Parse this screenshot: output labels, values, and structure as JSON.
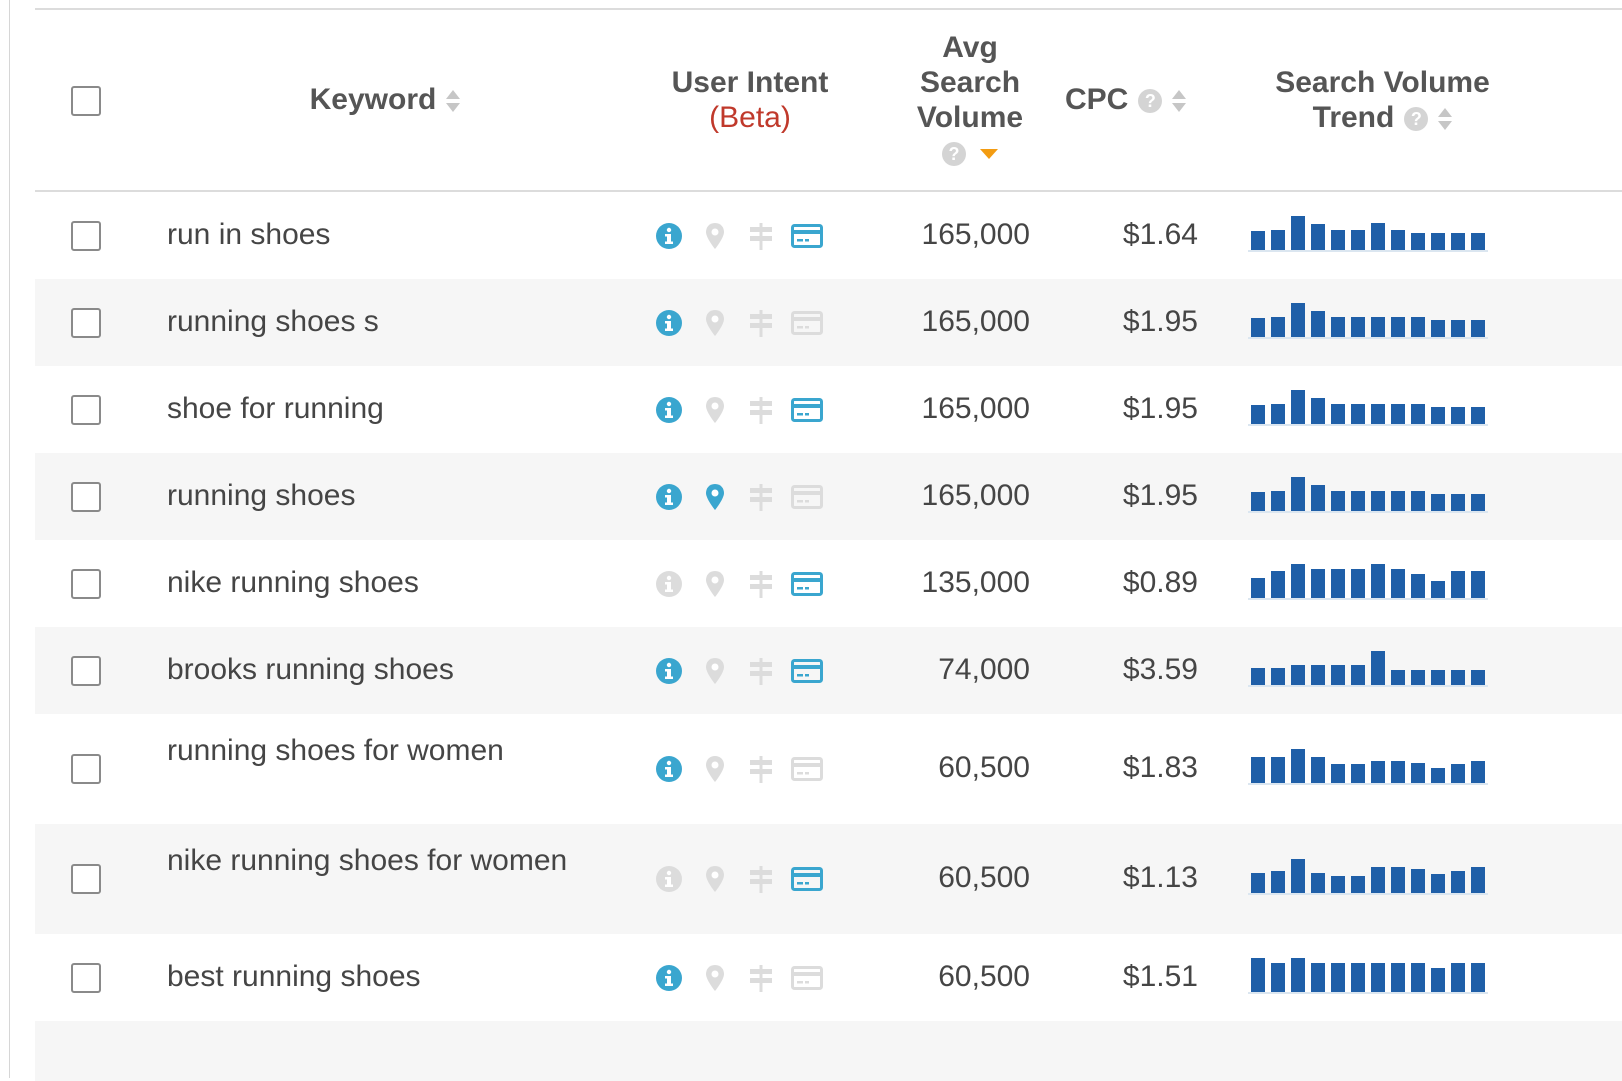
{
  "header": {
    "keyword": "Keyword",
    "user_intent": "User Intent",
    "user_intent_beta": "(Beta)",
    "avg_volume_line1": "Avg",
    "avg_volume_line2": "Search",
    "avg_volume_line3": "Volume",
    "cpc": "CPC",
    "trend_line1": "Search Volume",
    "trend_line2": "Trend",
    "help_glyph": "?"
  },
  "colors": {
    "bar": "#1f5fa8",
    "intent_active": "#3aa6cf",
    "intent_inactive": "#dcdcdc",
    "beta": "#c0392b",
    "sort_active": "#f39c12"
  },
  "rows": [
    {
      "keyword": "run in shoes",
      "intent": [
        1,
        0,
        0,
        1
      ],
      "volume": "165,000",
      "cpc": "$1.64",
      "trend": [
        0.55,
        0.6,
        1,
        0.75,
        0.6,
        0.6,
        0.8,
        0.6,
        0.5,
        0.5,
        0.5,
        0.5
      ]
    },
    {
      "keyword": "running shoes s",
      "intent": [
        1,
        0,
        0,
        0
      ],
      "volume": "165,000",
      "cpc": "$1.95",
      "trend": [
        0.55,
        0.6,
        1,
        0.75,
        0.6,
        0.6,
        0.6,
        0.6,
        0.6,
        0.5,
        0.5,
        0.5
      ]
    },
    {
      "keyword": "shoe for running",
      "intent": [
        1,
        0,
        0,
        1
      ],
      "volume": "165,000",
      "cpc": "$1.95",
      "trend": [
        0.55,
        0.6,
        1,
        0.75,
        0.6,
        0.6,
        0.6,
        0.6,
        0.6,
        0.5,
        0.5,
        0.5
      ]
    },
    {
      "keyword": "running shoes",
      "intent": [
        1,
        1,
        0,
        0
      ],
      "volume": "165,000",
      "cpc": "$1.95",
      "trend": [
        0.55,
        0.6,
        1,
        0.75,
        0.6,
        0.6,
        0.6,
        0.6,
        0.6,
        0.5,
        0.5,
        0.5
      ]
    },
    {
      "keyword": "nike running shoes",
      "intent": [
        0,
        0,
        0,
        1
      ],
      "volume": "135,000",
      "cpc": "$0.89",
      "trend": [
        0.6,
        0.8,
        1,
        0.85,
        0.85,
        0.85,
        1,
        0.85,
        0.7,
        0.5,
        0.8,
        0.8
      ]
    },
    {
      "keyword": "brooks running shoes",
      "intent": [
        1,
        0,
        0,
        1
      ],
      "volume": "74,000",
      "cpc": "$3.59",
      "trend": [
        0.5,
        0.5,
        0.6,
        0.6,
        0.6,
        0.6,
        1,
        0.45,
        0.45,
        0.45,
        0.45,
        0.45
      ]
    },
    {
      "keyword": "running shoes for women",
      "intent": [
        1,
        0,
        0,
        0
      ],
      "volume": "60,500",
      "cpc": "$1.83",
      "trend": [
        0.75,
        0.75,
        1,
        0.75,
        0.55,
        0.55,
        0.65,
        0.65,
        0.6,
        0.45,
        0.55,
        0.65
      ]
    },
    {
      "keyword": "nike running shoes for women",
      "intent": [
        0,
        0,
        0,
        1
      ],
      "volume": "60,500",
      "cpc": "$1.13",
      "trend": [
        0.6,
        0.65,
        1,
        0.6,
        0.5,
        0.5,
        0.75,
        0.75,
        0.7,
        0.55,
        0.65,
        0.75
      ]
    },
    {
      "keyword": "best running shoes",
      "intent": [
        1,
        0,
        0,
        0
      ],
      "volume": "60,500",
      "cpc": "$1.51",
      "trend": [
        1,
        0.85,
        1,
        0.85,
        0.85,
        0.85,
        0.85,
        0.85,
        0.85,
        0.7,
        0.85,
        0.85
      ]
    }
  ]
}
